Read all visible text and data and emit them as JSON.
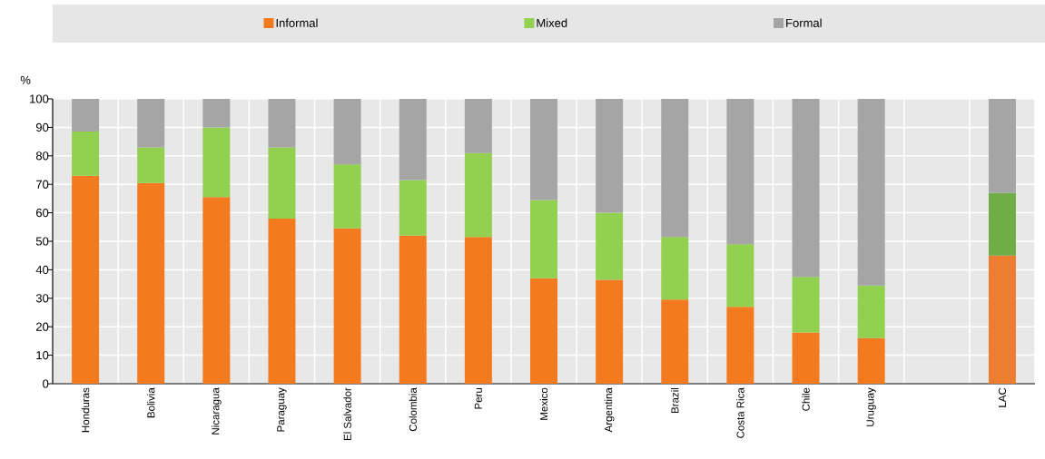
{
  "chart_data": {
    "type": "bar",
    "stacked": true,
    "ylabel": "%",
    "categories": [
      "Honduras",
      "Bolivia",
      "Nicaragua",
      "Paraguay",
      "El Salvador",
      "Colombia",
      "Peru",
      "Mexico",
      "Argentina",
      "Brazil",
      "Costa Rica",
      "Chile",
      "Uruguay",
      null,
      "LAC"
    ],
    "series": [
      {
        "name": "Informal",
        "color": "#f47a20",
        "colors": [
          "#f47a20",
          "#f47a20",
          "#f47a20",
          "#f47a20",
          "#f47a20",
          "#f47a20",
          "#f47a20",
          "#f47a20",
          "#f47a20",
          "#f47a20",
          "#f47a20",
          "#f47a20",
          "#f47a20",
          null,
          "#ed7d31"
        ],
        "values": [
          73,
          70.5,
          65.5,
          58,
          54.5,
          52,
          51.5,
          37,
          36.5,
          29.5,
          27,
          18,
          16,
          null,
          45
        ]
      },
      {
        "name": "Mixed",
        "color": "#92d050",
        "colors": [
          "#92d050",
          "#92d050",
          "#92d050",
          "#92d050",
          "#92d050",
          "#92d050",
          "#92d050",
          "#92d050",
          "#92d050",
          "#92d050",
          "#92d050",
          "#92d050",
          "#92d050",
          null,
          "#70ad47"
        ],
        "values": [
          15.5,
          12.5,
          24.5,
          25,
          22.5,
          19.5,
          29.5,
          27.5,
          23.5,
          22,
          22,
          19.5,
          18.5,
          null,
          22
        ]
      },
      {
        "name": "Formal",
        "color": "#a5a5a5",
        "colors": [
          "#a5a5a5",
          "#a5a5a5",
          "#a5a5a5",
          "#a5a5a5",
          "#a5a5a5",
          "#a5a5a5",
          "#a5a5a5",
          "#a5a5a5",
          "#a5a5a5",
          "#a5a5a5",
          "#a5a5a5",
          "#a5a5a5",
          "#a5a5a5",
          null,
          "#a5a5a5"
        ],
        "values": [
          11.5,
          17,
          10,
          17,
          23,
          28.5,
          19,
          35.5,
          40,
          48.5,
          51,
          62.5,
          65.5,
          null,
          33
        ]
      }
    ],
    "ylim": [
      0,
      100
    ],
    "yticks": [
      0,
      10,
      20,
      30,
      40,
      50,
      60,
      70,
      80,
      90,
      100
    ],
    "grid": true,
    "legend": "top"
  }
}
